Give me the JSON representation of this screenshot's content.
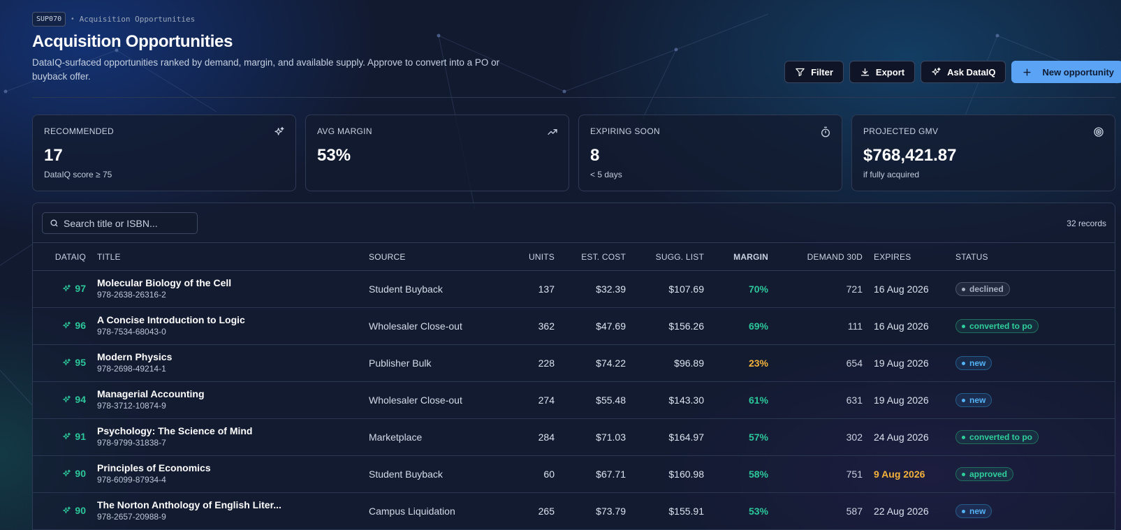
{
  "header": {
    "code": "SUP070",
    "breadcrumb": "Acquisition Opportunities",
    "title": "Acquisition Opportunities",
    "subtitle": "DataIQ-surfaced opportunities ranked by demand, margin, and available supply. Approve to convert into a PO or buyback offer."
  },
  "actions": {
    "filter": "Filter",
    "export": "Export",
    "ask": "Ask DataIQ",
    "new": "New opportunity"
  },
  "kpis": [
    {
      "label": "RECOMMENDED",
      "value": "17",
      "sub": "DataIQ score ≥ 75",
      "icon": "sparkles-icon"
    },
    {
      "label": "AVG MARGIN",
      "value": "53%",
      "sub": "",
      "icon": "trending-up-icon"
    },
    {
      "label": "EXPIRING SOON",
      "value": "8",
      "sub": "< 5 days",
      "icon": "timer-icon"
    },
    {
      "label": "PROJECTED GMV",
      "value": "$768,421.87",
      "sub": "if fully acquired",
      "icon": "target-icon"
    }
  ],
  "table": {
    "search_placeholder": "Search title or ISBN...",
    "records": "32 records",
    "columns": [
      "DATAIQ",
      "TITLE",
      "SOURCE",
      "UNITS",
      "EST. COST",
      "SUGG. LIST",
      "MARGIN",
      "DEMAND 30D",
      "EXPIRES",
      "STATUS"
    ],
    "rows": [
      {
        "score": "97",
        "title": "Molecular Biology of the Cell",
        "isbn": "978-2638-26316-2",
        "source": "Student Buyback",
        "units": "137",
        "cost": "$32.39",
        "list": "$107.69",
        "margin": "70%",
        "demand": "721",
        "expires": "16 Aug 2026",
        "status": "declined"
      },
      {
        "score": "96",
        "title": "A Concise Introduction to Logic",
        "isbn": "978-7534-68043-0",
        "source": "Wholesaler Close-out",
        "units": "362",
        "cost": "$47.69",
        "list": "$156.26",
        "margin": "69%",
        "demand": "111",
        "expires": "16 Aug 2026",
        "status": "converted to po"
      },
      {
        "score": "95",
        "title": "Modern Physics",
        "isbn": "978-2698-49214-1",
        "source": "Publisher Bulk",
        "units": "228",
        "cost": "$74.22",
        "list": "$96.89",
        "margin": "23%",
        "demand": "654",
        "expires": "19 Aug 2026",
        "status": "new"
      },
      {
        "score": "94",
        "title": "Managerial Accounting",
        "isbn": "978-3712-10874-9",
        "source": "Wholesaler Close-out",
        "units": "274",
        "cost": "$55.48",
        "list": "$143.30",
        "margin": "61%",
        "demand": "631",
        "expires": "19 Aug 2026",
        "status": "new"
      },
      {
        "score": "91",
        "title": "Psychology: The Science of Mind",
        "isbn": "978-9799-31838-7",
        "source": "Marketplace",
        "units": "284",
        "cost": "$71.03",
        "list": "$164.97",
        "margin": "57%",
        "demand": "302",
        "expires": "24 Aug 2026",
        "status": "converted to po"
      },
      {
        "score": "90",
        "title": "Principles of Economics",
        "isbn": "978-6099-87934-4",
        "source": "Student Buyback",
        "units": "60",
        "cost": "$67.71",
        "list": "$160.98",
        "margin": "58%",
        "demand": "751",
        "expires": "9 Aug 2026",
        "status": "approved"
      },
      {
        "score": "90",
        "title": "The Norton Anthology of English Liter...",
        "isbn": "978-2657-20988-9",
        "source": "Campus Liquidation",
        "units": "265",
        "cost": "$73.79",
        "list": "$155.91",
        "margin": "53%",
        "demand": "587",
        "expires": "22 Aug 2026",
        "status": "new"
      }
    ]
  },
  "colors": {
    "accent": "#5ba4f5",
    "good": "#2cc79a",
    "warn": "#f5b23a",
    "background": "#121a30"
  }
}
